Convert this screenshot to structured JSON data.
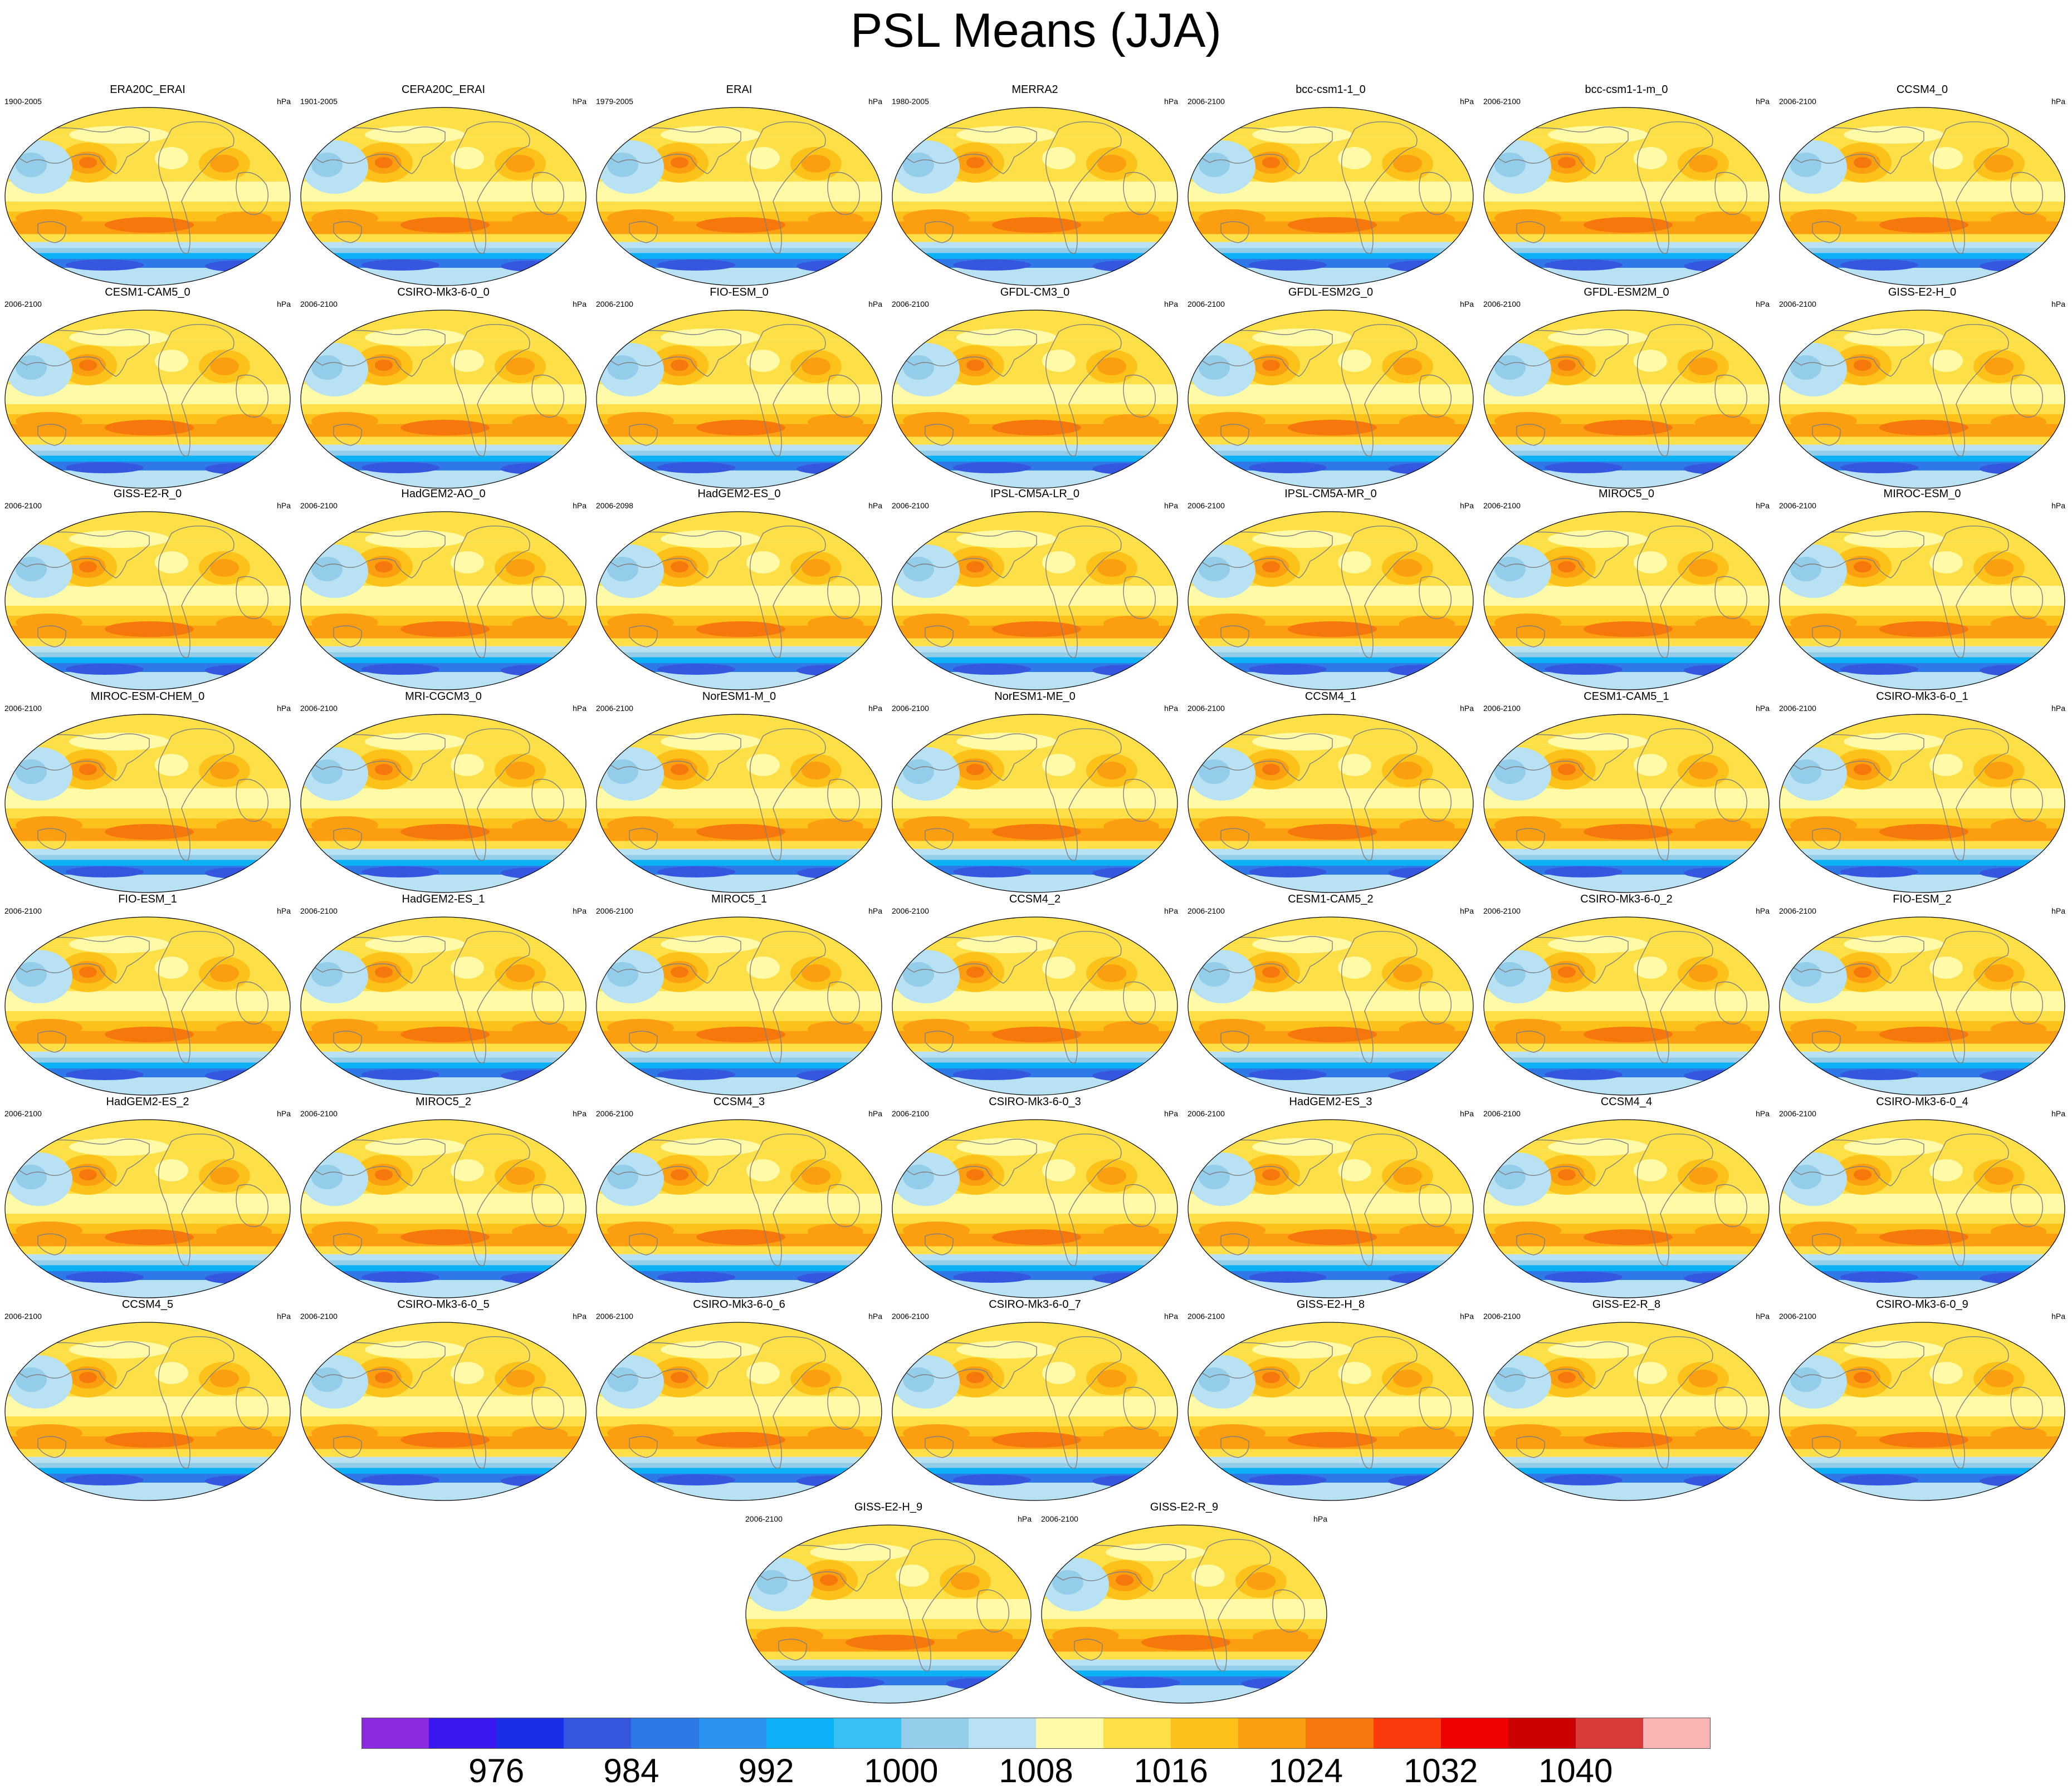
{
  "title": "PSL Means (JJA)",
  "unit": "hPa",
  "colorbar": {
    "colors": [
      "#8a2be2",
      "#3a18f0",
      "#1a2ee8",
      "#3557e0",
      "#2f78e8",
      "#2a93f0",
      "#0cb0f5",
      "#38c0f5",
      "#93cde9",
      "#b8e2f3",
      "#fffaa8",
      "#fde048",
      "#fcc21a",
      "#fb9f10",
      "#f6770c",
      "#fb3b0c",
      "#f00000",
      "#cc0000",
      "#d83a3a",
      "#fbb4b4"
    ],
    "labels": [
      "976",
      "984",
      "992",
      "1000",
      "1008",
      "1016",
      "1024",
      "1032",
      "1040"
    ]
  },
  "panels": [
    {
      "name": "ERA20C_ERAI",
      "period": "1900-2005"
    },
    {
      "name": "CERA20C_ERAI",
      "period": "1901-2005"
    },
    {
      "name": "ERAI",
      "period": "1979-2005"
    },
    {
      "name": "MERRA2",
      "period": "1980-2005"
    },
    {
      "name": "bcc-csm1-1_0",
      "period": "2006-2100"
    },
    {
      "name": "bcc-csm1-1-m_0",
      "period": "2006-2100"
    },
    {
      "name": "CCSM4_0",
      "period": "2006-2100"
    },
    {
      "name": "CESM1-CAM5_0",
      "period": "2006-2100"
    },
    {
      "name": "CSIRO-Mk3-6-0_0",
      "period": "2006-2100"
    },
    {
      "name": "FIO-ESM_0",
      "period": "2006-2100"
    },
    {
      "name": "GFDL-CM3_0",
      "period": "2006-2100"
    },
    {
      "name": "GFDL-ESM2G_0",
      "period": "2006-2100"
    },
    {
      "name": "GFDL-ESM2M_0",
      "period": "2006-2100"
    },
    {
      "name": "GISS-E2-H_0",
      "period": "2006-2100"
    },
    {
      "name": "GISS-E2-R_0",
      "period": "2006-2100"
    },
    {
      "name": "HadGEM2-AO_0",
      "period": "2006-2100"
    },
    {
      "name": "HadGEM2-ES_0",
      "period": "2006-2098"
    },
    {
      "name": "IPSL-CM5A-LR_0",
      "period": "2006-2100"
    },
    {
      "name": "IPSL-CM5A-MR_0",
      "period": "2006-2100"
    },
    {
      "name": "MIROC5_0",
      "period": "2006-2100"
    },
    {
      "name": "MIROC-ESM_0",
      "period": "2006-2100"
    },
    {
      "name": "MIROC-ESM-CHEM_0",
      "period": "2006-2100"
    },
    {
      "name": "MRI-CGCM3_0",
      "period": "2006-2100"
    },
    {
      "name": "NorESM1-M_0",
      "period": "2006-2100"
    },
    {
      "name": "NorESM1-ME_0",
      "period": "2006-2100"
    },
    {
      "name": "CCSM4_1",
      "period": "2006-2100"
    },
    {
      "name": "CESM1-CAM5_1",
      "period": "2006-2100"
    },
    {
      "name": "CSIRO-Mk3-6-0_1",
      "period": "2006-2100"
    },
    {
      "name": "FIO-ESM_1",
      "period": "2006-2100"
    },
    {
      "name": "HadGEM2-ES_1",
      "period": "2006-2100"
    },
    {
      "name": "MIROC5_1",
      "period": "2006-2100"
    },
    {
      "name": "CCSM4_2",
      "period": "2006-2100"
    },
    {
      "name": "CESM1-CAM5_2",
      "period": "2006-2100"
    },
    {
      "name": "CSIRO-Mk3-6-0_2",
      "period": "2006-2100"
    },
    {
      "name": "FIO-ESM_2",
      "period": "2006-2100"
    },
    {
      "name": "HadGEM2-ES_2",
      "period": "2006-2100"
    },
    {
      "name": "MIROC5_2",
      "period": "2006-2100"
    },
    {
      "name": "CCSM4_3",
      "period": "2006-2100"
    },
    {
      "name": "CSIRO-Mk3-6-0_3",
      "period": "2006-2100"
    },
    {
      "name": "HadGEM2-ES_3",
      "period": "2006-2100"
    },
    {
      "name": "CCSM4_4",
      "period": "2006-2100"
    },
    {
      "name": "CSIRO-Mk3-6-0_4",
      "period": "2006-2100"
    },
    {
      "name": "CCSM4_5",
      "period": "2006-2100"
    },
    {
      "name": "CSIRO-Mk3-6-0_5",
      "period": "2006-2100"
    },
    {
      "name": "CSIRO-Mk3-6-0_6",
      "period": "2006-2100"
    },
    {
      "name": "CSIRO-Mk3-6-0_7",
      "period": "2006-2100"
    },
    {
      "name": "GISS-E2-H_8",
      "period": "2006-2100"
    },
    {
      "name": "GISS-E2-R_8",
      "period": "2006-2100"
    },
    {
      "name": "CSIRO-Mk3-6-0_9",
      "period": "2006-2100"
    },
    {
      "name": "GISS-E2-H_9",
      "period": "2006-2100"
    },
    {
      "name": "GISS-E2-R_9",
      "period": "2006-2100"
    }
  ]
}
